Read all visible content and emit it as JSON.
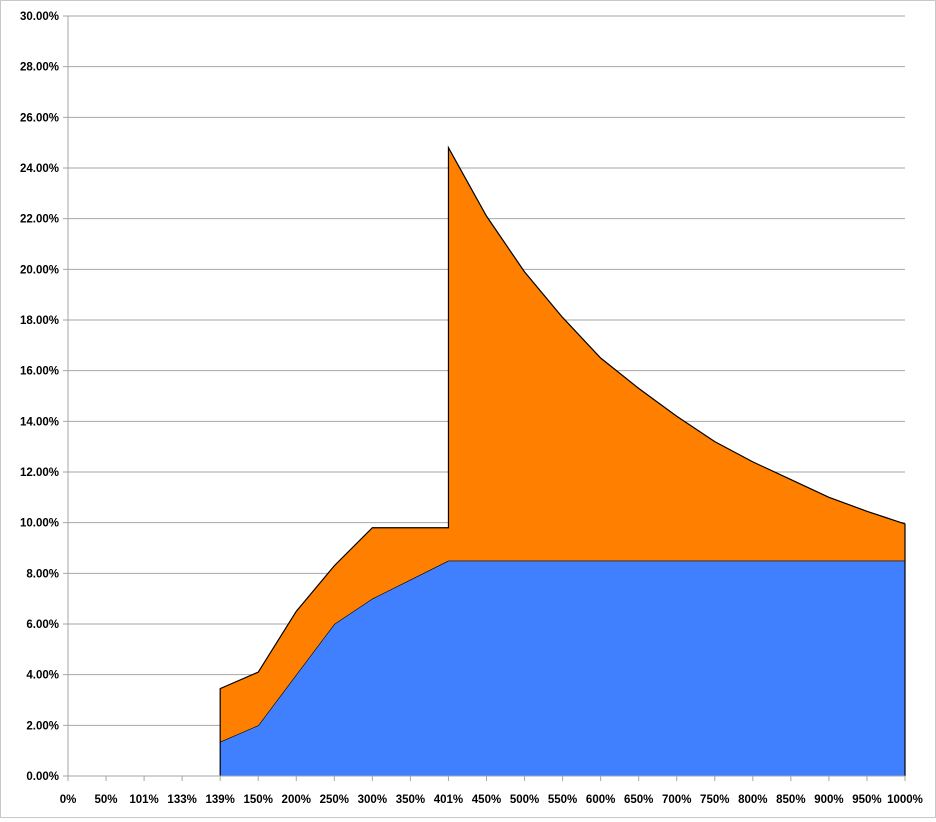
{
  "chart_data": {
    "type": "area",
    "stacked": true,
    "title": "",
    "xlabel": "",
    "ylabel": "",
    "ylim": [
      0,
      30
    ],
    "y_tick_step": 2,
    "y_tick_format": "percent-2dp",
    "grid": "horizontal",
    "legend": "none",
    "categories": [
      "0%",
      "50%",
      "101%",
      "133%",
      "139%",
      "150%",
      "200%",
      "250%",
      "300%",
      "350%",
      "401%",
      "450%",
      "500%",
      "550%",
      "600%",
      "650%",
      "700%",
      "750%",
      "800%",
      "850%",
      "900%",
      "950%",
      "1000%"
    ],
    "y_ticks": [
      "0.00%",
      "2.00%",
      "4.00%",
      "6.00%",
      "8.00%",
      "10.00%",
      "12.00%",
      "14.00%",
      "16.00%",
      "18.00%",
      "20.00%",
      "22.00%",
      "24.00%",
      "26.00%",
      "28.00%",
      "30.00%"
    ],
    "series": [
      {
        "color": "#4080ff",
        "values": [
          null,
          null,
          null,
          null,
          1.35,
          2.0,
          4.0,
          6.0,
          7.0,
          7.75,
          8.5,
          8.5,
          8.5,
          8.5,
          8.5,
          8.5,
          8.5,
          8.5,
          8.5,
          8.5,
          8.5,
          8.5,
          8.5
        ]
      },
      {
        "color": "#ff8000",
        "values": [
          null,
          null,
          null,
          null,
          2.1,
          2.1,
          2.5,
          2.3,
          2.8,
          2.05,
          [
            1.3,
            16.3
          ],
          13.6,
          11.4,
          9.6,
          8.0,
          6.8,
          5.7,
          4.7,
          3.9,
          3.2,
          2.5,
          1.95,
          1.45
        ]
      }
    ]
  }
}
